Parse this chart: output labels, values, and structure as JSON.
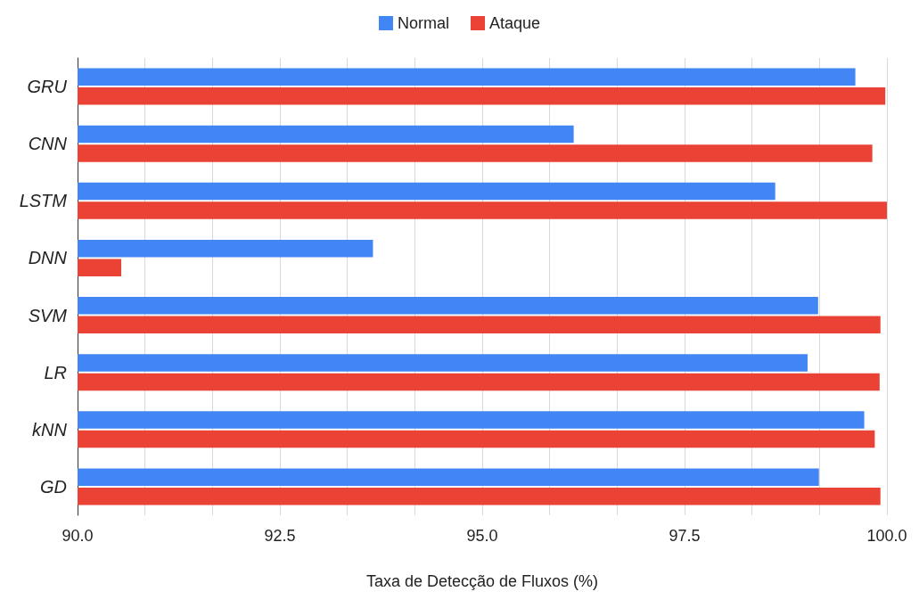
{
  "chart_data": {
    "type": "bar",
    "orientation": "horizontal",
    "xlabel": "Taxa de Detecção de Fluxos (%)",
    "categories": [
      "GRU",
      "CNN",
      "LSTM",
      "DNN",
      "SVM",
      "LR",
      "kNN",
      "GD"
    ],
    "series": [
      {
        "name": "Normal",
        "color": "#4285f4",
        "values": [
          99.61,
          96.13,
          98.62,
          93.65,
          99.15,
          99.02,
          99.72,
          99.16
        ]
      },
      {
        "name": "Ataque",
        "color": "#ea4335",
        "values": [
          99.98,
          99.82,
          100.0,
          90.54,
          99.92,
          99.91,
          99.85,
          99.92
        ]
      }
    ],
    "xlim": [
      90,
      100
    ],
    "xticks": [
      {
        "value": 90,
        "label": "90.0"
      },
      {
        "value": 90.833,
        "label": null
      },
      {
        "value": 91.667,
        "label": null
      },
      {
        "value": 92.5,
        "label": "92.5"
      },
      {
        "value": 93.333,
        "label": null
      },
      {
        "value": 94.167,
        "label": null
      },
      {
        "value": 95,
        "label": "95.0"
      },
      {
        "value": 95.833,
        "label": null
      },
      {
        "value": 96.667,
        "label": null
      },
      {
        "value": 97.5,
        "label": "97.5"
      },
      {
        "value": 98.333,
        "label": null
      },
      {
        "value": 99.167,
        "label": null
      },
      {
        "value": 100,
        "label": "100.0"
      }
    ],
    "grid": "x",
    "legend": "top"
  }
}
